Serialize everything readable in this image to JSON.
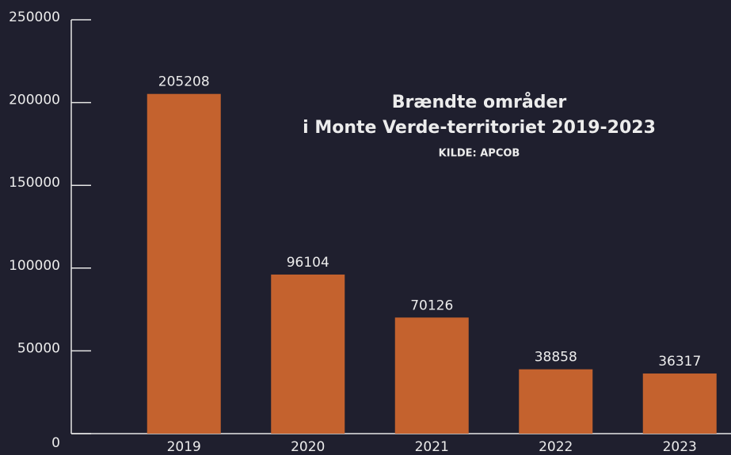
{
  "chart_data": {
    "type": "bar",
    "title": [
      "Brændte områder",
      "i Monte Verde-territoriet 2019-2023"
    ],
    "subtitle": "KILDE: APCOB",
    "categories": [
      "2019",
      "2020",
      "2021",
      "2022",
      "2023"
    ],
    "values": [
      205208,
      96104,
      70126,
      38858,
      36317
    ],
    "color": "#c4622e",
    "ylim": [
      0,
      250000
    ],
    "yticks": [
      0,
      50000,
      100000,
      150000,
      200000,
      250000
    ]
  }
}
